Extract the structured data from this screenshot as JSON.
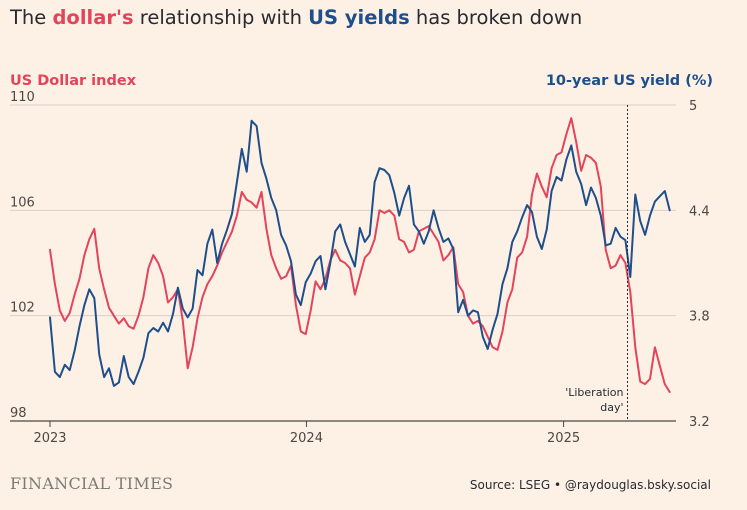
{
  "title": {
    "prefix": "The ",
    "usd": "dollar's",
    "middle": " relationship with ",
    "yields": "US yields",
    "suffix": " has broken down"
  },
  "colors": {
    "usd": "#e3445b",
    "yield": "#1f4e8c",
    "background": "#fdf1e5",
    "grid": "#d9cfc5",
    "axis": "#4d4845"
  },
  "footer": {
    "brand": "FINANCIAL TIMES",
    "source": "Source: LSEG • @raydouglas.bsky.social"
  },
  "chart_data": {
    "type": "line",
    "left_axis": {
      "title": "US Dollar index",
      "ylim": [
        98,
        110
      ],
      "ticks": [
        98,
        102,
        106,
        110
      ]
    },
    "right_axis": {
      "title": "10-year US yield (%)",
      "ylim": [
        3.2,
        5
      ],
      "ticks": [
        3.2,
        3.8,
        4.4,
        5
      ]
    },
    "x_axis": {
      "xlim": [
        "2023-01-01",
        "2025-06-10"
      ],
      "ticks": [
        "2023",
        "2024",
        "2025"
      ],
      "tick_dates": [
        "2023-01-01",
        "2024-01-01",
        "2025-01-01"
      ]
    },
    "grid": true,
    "annotation": {
      "text": [
        "'Liberation",
        "day'"
      ],
      "date": "2025-04-02"
    },
    "series": [
      {
        "name": "US Dollar index",
        "axis": "left",
        "x": [
          "2023-01-01",
          "2023-01-08",
          "2023-01-15",
          "2023-01-22",
          "2023-01-29",
          "2023-02-05",
          "2023-02-12",
          "2023-02-19",
          "2023-02-26",
          "2023-03-05",
          "2023-03-12",
          "2023-03-19",
          "2023-03-26",
          "2023-04-02",
          "2023-04-09",
          "2023-04-16",
          "2023-04-23",
          "2023-04-30",
          "2023-05-07",
          "2023-05-14",
          "2023-05-21",
          "2023-05-28",
          "2023-06-04",
          "2023-06-11",
          "2023-06-18",
          "2023-06-25",
          "2023-07-02",
          "2023-07-09",
          "2023-07-16",
          "2023-07-23",
          "2023-07-30",
          "2023-08-06",
          "2023-08-13",
          "2023-08-20",
          "2023-08-27",
          "2023-09-03",
          "2023-09-10",
          "2023-09-17",
          "2023-09-24",
          "2023-10-01",
          "2023-10-08",
          "2023-10-15",
          "2023-10-22",
          "2023-10-29",
          "2023-11-05",
          "2023-11-12",
          "2023-11-19",
          "2023-11-26",
          "2023-12-03",
          "2023-12-10",
          "2023-12-17",
          "2023-12-24",
          "2023-12-31",
          "2024-01-07",
          "2024-01-14",
          "2024-01-21",
          "2024-01-28",
          "2024-02-04",
          "2024-02-11",
          "2024-02-18",
          "2024-02-25",
          "2024-03-03",
          "2024-03-10",
          "2024-03-17",
          "2024-03-24",
          "2024-03-31",
          "2024-04-07",
          "2024-04-14",
          "2024-04-21",
          "2024-04-28",
          "2024-05-05",
          "2024-05-12",
          "2024-05-19",
          "2024-05-26",
          "2024-06-02",
          "2024-06-09",
          "2024-06-16",
          "2024-06-23",
          "2024-06-30",
          "2024-07-07",
          "2024-07-14",
          "2024-07-21",
          "2024-07-28",
          "2024-08-04",
          "2024-08-11",
          "2024-08-18",
          "2024-08-25",
          "2024-09-01",
          "2024-09-08",
          "2024-09-15",
          "2024-09-22",
          "2024-09-29",
          "2024-10-06",
          "2024-10-13",
          "2024-10-20",
          "2024-10-27",
          "2024-11-03",
          "2024-11-10",
          "2024-11-17",
          "2024-11-24",
          "2024-12-01",
          "2024-12-08",
          "2024-12-15",
          "2024-12-22",
          "2024-12-29",
          "2025-01-05",
          "2025-01-12",
          "2025-01-19",
          "2025-01-26",
          "2025-02-02",
          "2025-02-09",
          "2025-02-16",
          "2025-02-23",
          "2025-03-02",
          "2025-03-09",
          "2025-03-16",
          "2025-03-23",
          "2025-03-30",
          "2025-04-06",
          "2025-04-13",
          "2025-04-20",
          "2025-04-27",
          "2025-05-04",
          "2025-05-11",
          "2025-05-18",
          "2025-05-25",
          "2025-06-01"
        ],
        "values": [
          104.5,
          103.2,
          102.2,
          101.8,
          102.1,
          102.8,
          103.4,
          104.3,
          104.9,
          105.3,
          103.8,
          103.0,
          102.3,
          102.0,
          101.7,
          101.9,
          101.6,
          101.5,
          102.0,
          102.7,
          103.8,
          104.3,
          104.0,
          103.5,
          102.5,
          102.7,
          103.0,
          101.8,
          100.0,
          100.8,
          101.9,
          102.7,
          103.2,
          103.5,
          103.9,
          104.4,
          104.8,
          105.2,
          105.8,
          106.7,
          106.4,
          106.3,
          106.1,
          106.7,
          105.3,
          104.3,
          103.8,
          103.4,
          103.5,
          103.9,
          102.4,
          101.4,
          101.3,
          102.2,
          103.3,
          103.0,
          103.4,
          104.1,
          104.5,
          104.1,
          104.0,
          103.8,
          102.8,
          103.5,
          104.2,
          104.4,
          104.9,
          106.0,
          105.9,
          106.0,
          105.8,
          104.9,
          104.8,
          104.4,
          104.5,
          105.2,
          105.3,
          105.4,
          105.1,
          104.8,
          104.1,
          104.3,
          104.6,
          103.2,
          102.9,
          102.0,
          101.7,
          101.8,
          101.6,
          101.2,
          100.8,
          100.7,
          101.4,
          102.5,
          103.0,
          104.2,
          104.4,
          105.0,
          106.6,
          107.4,
          106.9,
          106.5,
          107.6,
          108.1,
          108.2,
          108.9,
          109.5,
          108.6,
          107.5,
          108.1,
          108.0,
          107.8,
          106.9,
          104.5,
          103.8,
          103.9,
          104.3,
          104.0,
          102.9,
          100.8,
          99.5,
          99.4,
          99.6,
          100.8,
          100.1,
          99.4,
          99.1
        ]
      },
      {
        "name": "10-year US yield (%)",
        "axis": "right",
        "x": [
          "2023-01-01",
          "2023-01-08",
          "2023-01-15",
          "2023-01-22",
          "2023-01-29",
          "2023-02-05",
          "2023-02-12",
          "2023-02-19",
          "2023-02-26",
          "2023-03-05",
          "2023-03-12",
          "2023-03-19",
          "2023-03-26",
          "2023-04-02",
          "2023-04-09",
          "2023-04-16",
          "2023-04-23",
          "2023-04-30",
          "2023-05-07",
          "2023-05-14",
          "2023-05-21",
          "2023-05-28",
          "2023-06-04",
          "2023-06-11",
          "2023-06-18",
          "2023-06-25",
          "2023-07-02",
          "2023-07-09",
          "2023-07-16",
          "2023-07-23",
          "2023-07-30",
          "2023-08-06",
          "2023-08-13",
          "2023-08-20",
          "2023-08-27",
          "2023-09-03",
          "2023-09-10",
          "2023-09-17",
          "2023-09-24",
          "2023-10-01",
          "2023-10-08",
          "2023-10-15",
          "2023-10-22",
          "2023-10-29",
          "2023-11-05",
          "2023-11-12",
          "2023-11-19",
          "2023-11-26",
          "2023-12-03",
          "2023-12-10",
          "2023-12-17",
          "2023-12-24",
          "2023-12-31",
          "2024-01-07",
          "2024-01-14",
          "2024-01-21",
          "2024-01-28",
          "2024-02-04",
          "2024-02-11",
          "2024-02-18",
          "2024-02-25",
          "2024-03-03",
          "2024-03-10",
          "2024-03-17",
          "2024-03-24",
          "2024-03-31",
          "2024-04-07",
          "2024-04-14",
          "2024-04-21",
          "2024-04-28",
          "2024-05-05",
          "2024-05-12",
          "2024-05-19",
          "2024-05-26",
          "2024-06-02",
          "2024-06-09",
          "2024-06-16",
          "2024-06-23",
          "2024-06-30",
          "2024-07-07",
          "2024-07-14",
          "2024-07-21",
          "2024-07-28",
          "2024-08-04",
          "2024-08-11",
          "2024-08-18",
          "2024-08-25",
          "2024-09-01",
          "2024-09-08",
          "2024-09-15",
          "2024-09-22",
          "2024-09-29",
          "2024-10-06",
          "2024-10-13",
          "2024-10-20",
          "2024-10-27",
          "2024-11-03",
          "2024-11-10",
          "2024-11-17",
          "2024-11-24",
          "2024-12-01",
          "2024-12-08",
          "2024-12-15",
          "2024-12-22",
          "2024-12-29",
          "2025-01-05",
          "2025-01-12",
          "2025-01-19",
          "2025-01-26",
          "2025-02-02",
          "2025-02-09",
          "2025-02-16",
          "2025-02-23",
          "2025-03-02",
          "2025-03-09",
          "2025-03-16",
          "2025-03-23",
          "2025-03-30",
          "2025-04-06",
          "2025-04-13",
          "2025-04-20",
          "2025-04-27",
          "2025-05-04",
          "2025-05-11",
          "2025-05-18",
          "2025-05-25",
          "2025-06-01"
        ],
        "values": [
          3.79,
          3.48,
          3.45,
          3.52,
          3.49,
          3.6,
          3.74,
          3.86,
          3.95,
          3.9,
          3.58,
          3.45,
          3.5,
          3.4,
          3.42,
          3.57,
          3.45,
          3.41,
          3.48,
          3.56,
          3.7,
          3.73,
          3.71,
          3.76,
          3.71,
          3.81,
          3.96,
          3.84,
          3.79,
          3.84,
          4.06,
          4.03,
          4.21,
          4.29,
          4.1,
          4.21,
          4.29,
          4.38,
          4.56,
          4.75,
          4.62,
          4.91,
          4.88,
          4.67,
          4.58,
          4.47,
          4.4,
          4.26,
          4.2,
          4.11,
          3.92,
          3.86,
          3.99,
          4.04,
          4.11,
          4.14,
          3.95,
          4.1,
          4.28,
          4.32,
          4.22,
          4.15,
          4.08,
          4.3,
          4.22,
          4.26,
          4.56,
          4.64,
          4.63,
          4.6,
          4.5,
          4.37,
          4.47,
          4.54,
          4.32,
          4.28,
          4.21,
          4.28,
          4.4,
          4.3,
          4.22,
          4.24,
          4.18,
          3.82,
          3.89,
          3.8,
          3.83,
          3.82,
          3.68,
          3.61,
          3.72,
          3.81,
          3.98,
          4.07,
          4.22,
          4.28,
          4.36,
          4.43,
          4.39,
          4.25,
          4.18,
          4.29,
          4.51,
          4.59,
          4.57,
          4.69,
          4.77,
          4.62,
          4.55,
          4.43,
          4.53,
          4.47,
          4.37,
          4.2,
          4.21,
          4.3,
          4.25,
          4.23,
          4.02,
          4.49,
          4.34,
          4.26,
          4.37,
          4.45,
          4.48,
          4.51,
          4.4
        ]
      }
    ]
  }
}
